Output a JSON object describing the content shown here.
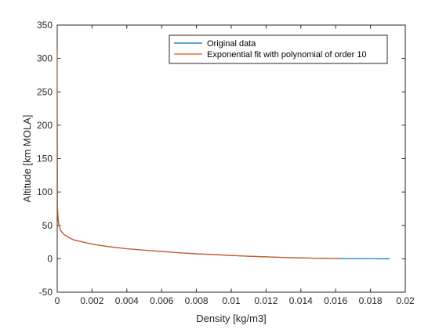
{
  "chart_data": {
    "type": "line",
    "title": "",
    "xlabel": "Density [kg/m3]",
    "ylabel": "Altitude [km MOLA]",
    "xlim": [
      0,
      0.02
    ],
    "ylim": [
      -50,
      350
    ],
    "xticks": [
      0,
      0.002,
      0.004,
      0.006,
      0.008,
      0.01,
      0.012,
      0.014,
      0.016,
      0.018,
      0.02
    ],
    "xtick_labels": [
      "0",
      "0.002",
      "0.004",
      "0.006",
      "0.008",
      "0.01",
      "0.012",
      "0.014",
      "0.016",
      "0.018",
      "0.02"
    ],
    "yticks": [
      -50,
      0,
      50,
      100,
      150,
      200,
      250,
      300,
      350
    ],
    "ytick_labels": [
      "-50",
      "0",
      "50",
      "100",
      "150",
      "200",
      "250",
      "300",
      "350"
    ],
    "grid": false,
    "legend_position": "top-right",
    "series": [
      {
        "name": "Original data",
        "color": "#0072BD",
        "x": [
          0,
          1e-05,
          5e-05,
          0.0001,
          0.0002,
          0.0004,
          0.0006,
          0.0008,
          0.001,
          0.0015,
          0.002,
          0.003,
          0.004,
          0.005,
          0.006,
          0.007,
          0.008,
          0.009,
          0.01,
          0.011,
          0.012,
          0.013,
          0.014,
          0.015,
          0.016,
          0.017,
          0.018,
          0.019,
          0.0191
        ],
        "y": [
          250,
          80,
          60,
          50,
          42,
          36,
          33,
          30,
          28,
          25,
          22,
          18,
          15,
          13,
          11,
          9,
          7.5,
          6.3,
          5.0,
          3.8,
          2.9,
          2.0,
          1.3,
          0.8,
          0.4,
          0.2,
          0.1,
          0.0,
          0.0
        ]
      },
      {
        "name": "Exponential fit with polynomial of order 10",
        "color": "#D95319",
        "x": [
          0,
          2e-06,
          1e-05,
          5e-05,
          0.0001,
          0.0002,
          0.0004,
          0.0006,
          0.0008,
          0.001,
          0.0015,
          0.002,
          0.003,
          0.004,
          0.005,
          0.006,
          0.007,
          0.008,
          0.009,
          0.01,
          0.011,
          0.012,
          0.013,
          0.014,
          0.015,
          0.016,
          0.0163
        ],
        "y": [
          312,
          200,
          80,
          60,
          50,
          42,
          36,
          33,
          30,
          28,
          25,
          22,
          18,
          15,
          13,
          11,
          9,
          7.5,
          6.3,
          5.0,
          3.8,
          2.9,
          2.0,
          1.3,
          0.8,
          0.4,
          0.3
        ]
      }
    ]
  }
}
